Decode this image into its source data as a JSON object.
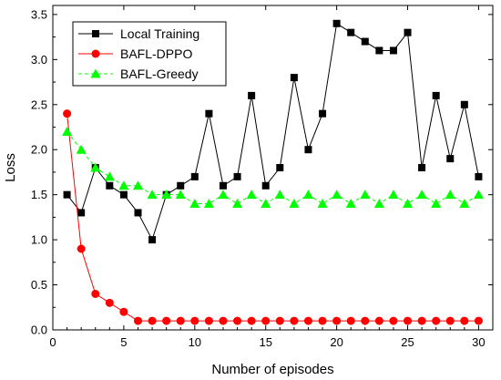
{
  "chart_data": {
    "type": "line",
    "xlabel": "Number of episodes",
    "ylabel": "Loss",
    "xlim": [
      0,
      31
    ],
    "ylim": [
      0,
      3.6
    ],
    "xticks": [
      0,
      5,
      10,
      15,
      20,
      25,
      30
    ],
    "yticks": [
      0.0,
      0.5,
      1.0,
      1.5,
      2.0,
      2.5,
      3.0,
      3.5
    ],
    "ytick_labels": [
      "0.0",
      "0.5",
      "1.0",
      "1.5",
      "2.0",
      "2.5",
      "3.0",
      "3.5"
    ],
    "x": [
      1,
      2,
      3,
      4,
      5,
      6,
      7,
      8,
      9,
      10,
      11,
      12,
      13,
      14,
      15,
      16,
      17,
      18,
      19,
      20,
      21,
      22,
      23,
      24,
      25,
      26,
      27,
      28,
      29,
      30
    ],
    "legend_position": "top-left",
    "grid": false,
    "series": [
      {
        "name": "Local Training",
        "color": "#000000",
        "marker": "square",
        "line_style": "solid",
        "values": [
          1.5,
          1.3,
          1.8,
          1.6,
          1.5,
          1.3,
          1.0,
          1.5,
          1.6,
          1.7,
          2.4,
          1.6,
          1.7,
          2.6,
          1.6,
          1.8,
          2.8,
          2.0,
          2.4,
          3.4,
          3.3,
          3.2,
          3.1,
          3.1,
          3.3,
          1.8,
          2.6,
          1.9,
          2.5,
          1.7
        ]
      },
      {
        "name": "BAFL-DPPO",
        "color": "#ff0000",
        "marker": "circle",
        "line_style": "solid",
        "values": [
          2.4,
          0.9,
          0.4,
          0.3,
          0.2,
          0.1,
          0.1,
          0.1,
          0.1,
          0.1,
          0.1,
          0.1,
          0.1,
          0.1,
          0.1,
          0.1,
          0.1,
          0.1,
          0.1,
          0.1,
          0.1,
          0.1,
          0.1,
          0.1,
          0.1,
          0.1,
          0.1,
          0.1,
          0.1,
          0.1
        ]
      },
      {
        "name": "BAFL-Greedy",
        "color": "#00ff00",
        "marker": "triangle",
        "line_style": "dashed",
        "values": [
          2.2,
          2.0,
          1.8,
          1.7,
          1.6,
          1.6,
          1.5,
          1.5,
          1.5,
          1.4,
          1.4,
          1.5,
          1.4,
          1.5,
          1.4,
          1.5,
          1.4,
          1.5,
          1.4,
          1.5,
          1.4,
          1.5,
          1.4,
          1.5,
          1.4,
          1.5,
          1.4,
          1.5,
          1.4,
          1.5
        ]
      }
    ]
  }
}
